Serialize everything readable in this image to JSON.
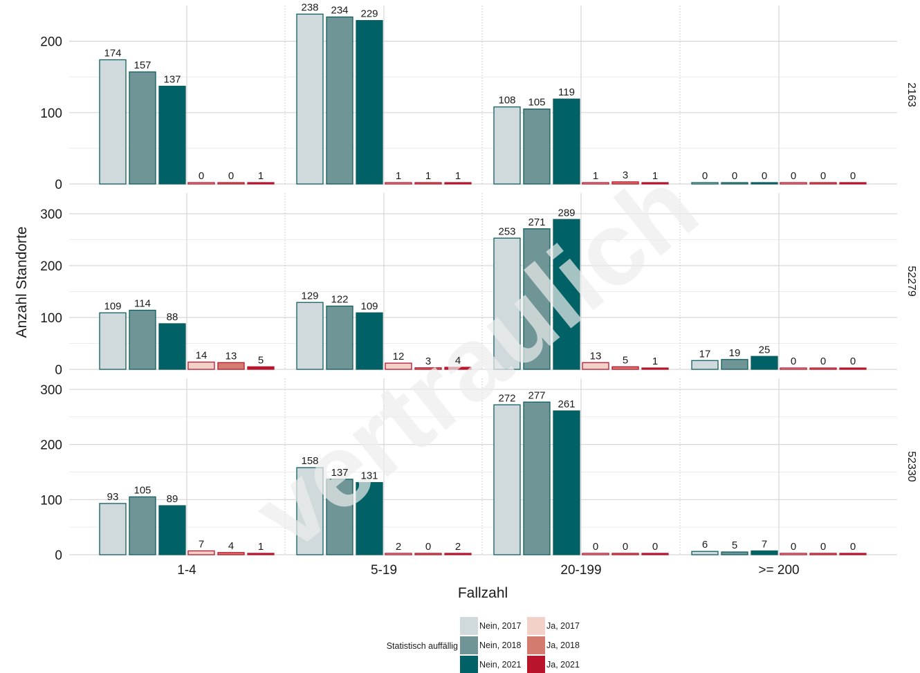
{
  "chart_data": {
    "type": "bar",
    "watermark": "vertraulich",
    "xlabel": "Fallzahl",
    "ylabel": "Anzahl Standorte",
    "categories": [
      "1-4",
      "5-19",
      "20-199",
      ">= 200"
    ],
    "legend": {
      "title": "Statistisch auffällig",
      "placement": "bottom",
      "entries": [
        {
          "label": "Nein, 2017",
          "color": "#d0d9dc"
        },
        {
          "label": "Nein, 2018",
          "color": "#6f9596"
        },
        {
          "label": "Nein, 2021",
          "color": "#006266"
        },
        {
          "label": "Ja, 2017",
          "color": "#f2d1c9"
        },
        {
          "label": "Ja, 2018",
          "color": "#d47b6f"
        },
        {
          "label": "Ja, 2021",
          "color": "#b8142c"
        }
      ]
    },
    "series_colors": {
      "Nein": {
        "fill": [
          "#d0d9dc",
          "#6f9596",
          "#006266"
        ],
        "stroke": "#0e5e60"
      },
      "Ja": {
        "fill": [
          "#f2d1c9",
          "#d47b6f",
          "#b8142c"
        ],
        "stroke": "#b8142c"
      }
    },
    "panels": [
      {
        "strip": "2163",
        "ylim": [
          0,
          250
        ],
        "yticks": [
          0,
          100,
          200
        ],
        "nein": [
          [
            174,
            157,
            137
          ],
          [
            238,
            234,
            229
          ],
          [
            108,
            105,
            119
          ],
          [
            0,
            0,
            0
          ]
        ],
        "ja": [
          [
            0,
            0,
            1
          ],
          [
            1,
            1,
            1
          ],
          [
            1,
            3,
            1
          ],
          [
            0,
            0,
            0
          ]
        ]
      },
      {
        "strip": "52279",
        "ylim": [
          0,
          340
        ],
        "yticks": [
          0,
          100,
          200,
          300
        ],
        "nein": [
          [
            109,
            114,
            88
          ],
          [
            129,
            122,
            109
          ],
          [
            253,
            271,
            289
          ],
          [
            17,
            19,
            25
          ]
        ],
        "ja": [
          [
            14,
            13,
            5
          ],
          [
            12,
            3,
            4
          ],
          [
            13,
            5,
            1
          ],
          [
            0,
            0,
            0
          ]
        ]
      },
      {
        "strip": "52330",
        "ylim": [
          0,
          320
        ],
        "yticks": [
          0,
          100,
          200,
          300
        ],
        "nein": [
          [
            93,
            105,
            89
          ],
          [
            158,
            137,
            131
          ],
          [
            272,
            277,
            261
          ],
          [
            6,
            5,
            7
          ]
        ],
        "ja": [
          [
            7,
            4,
            1
          ],
          [
            2,
            0,
            2
          ],
          [
            0,
            0,
            0
          ],
          [
            0,
            0,
            0
          ]
        ]
      }
    ]
  }
}
